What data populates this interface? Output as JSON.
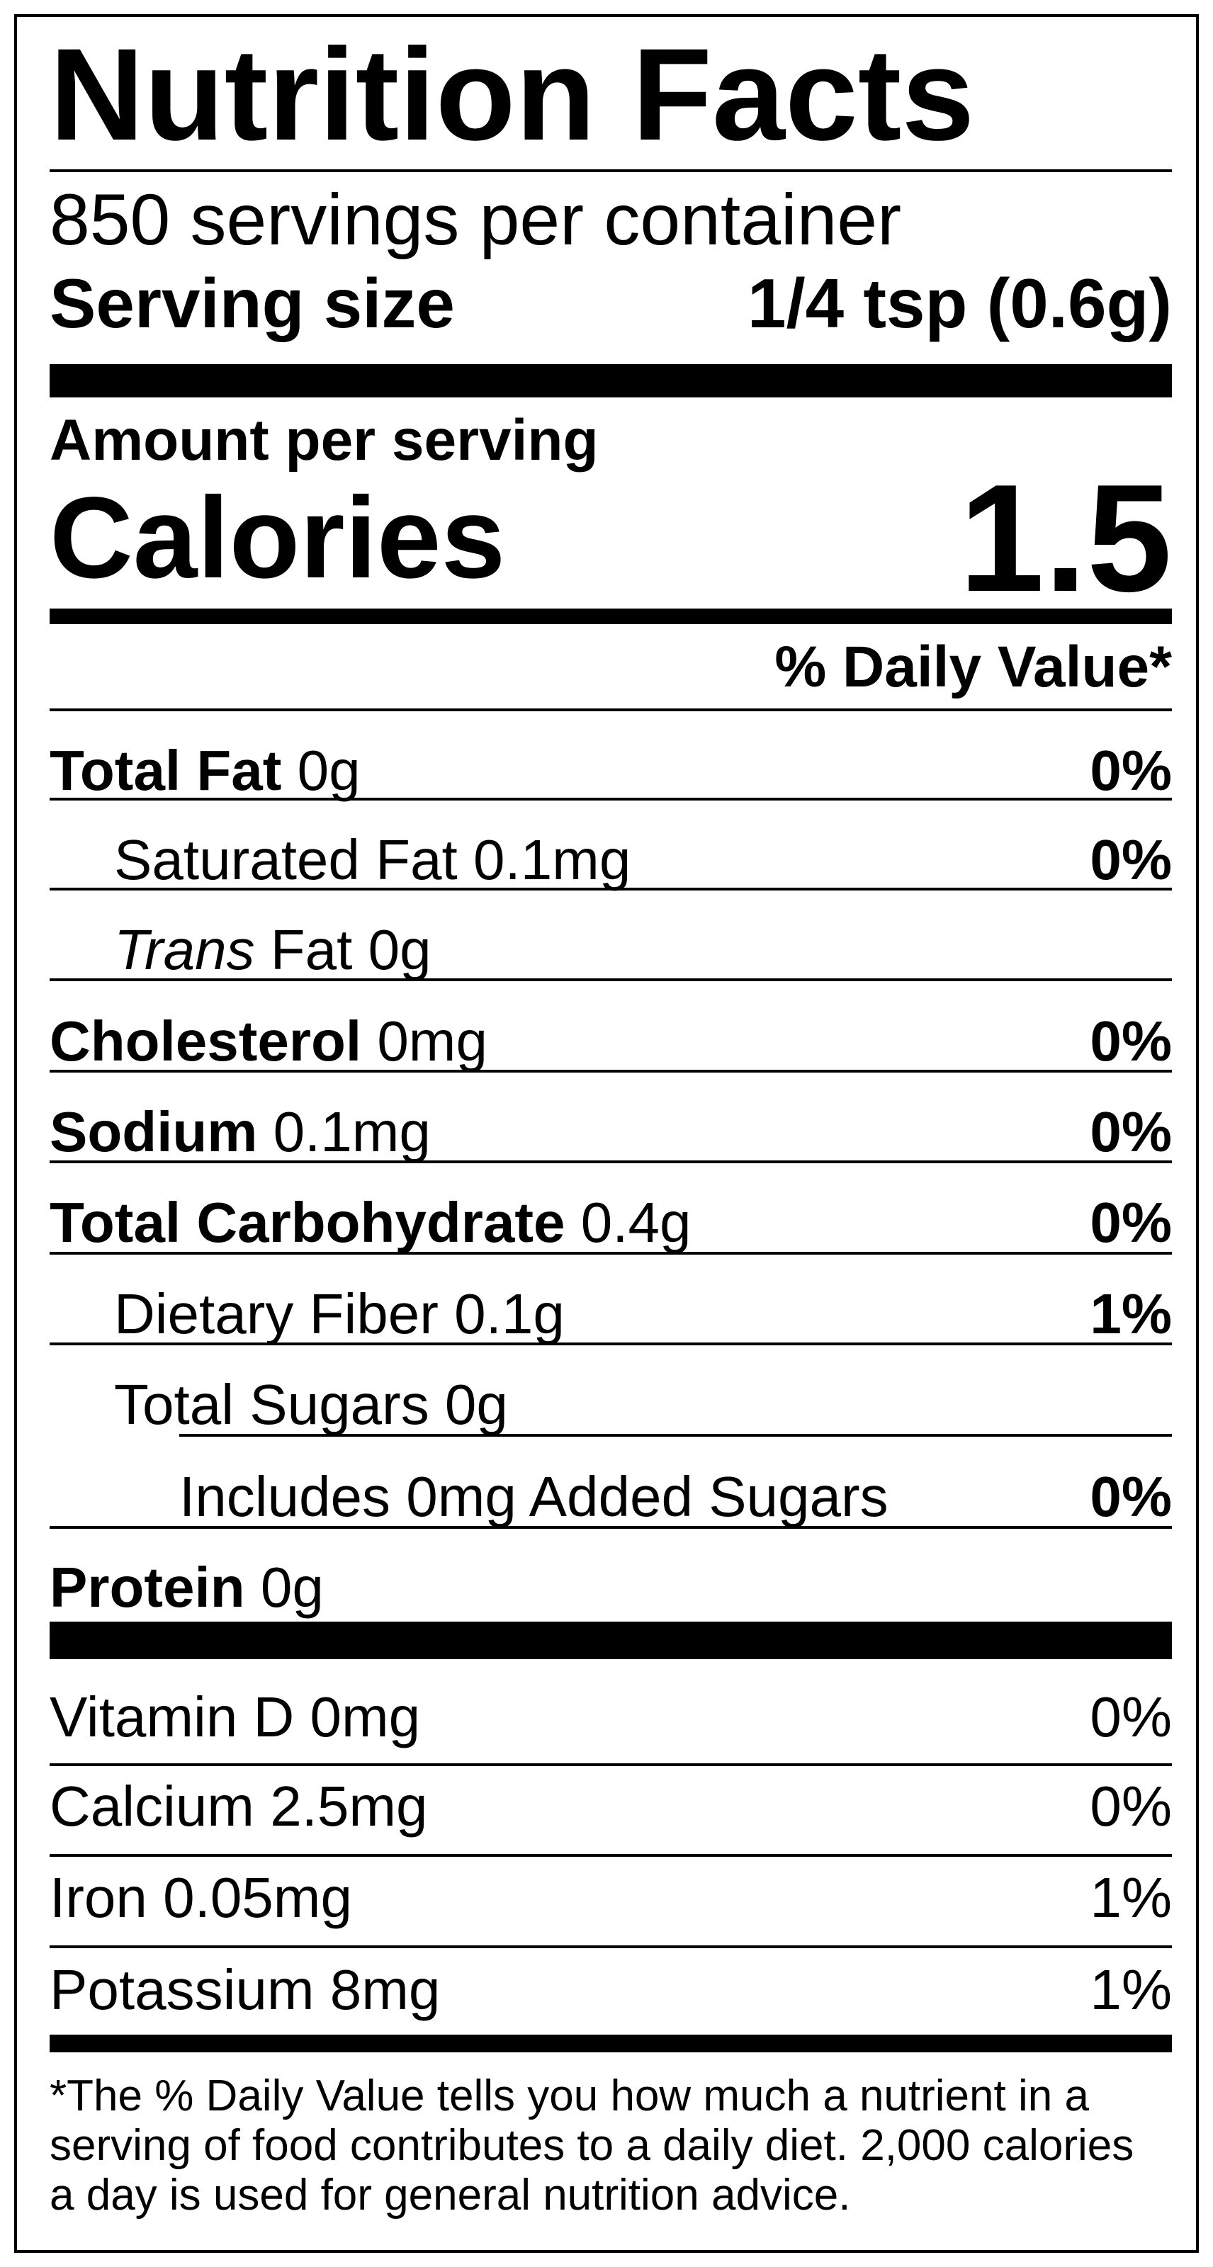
{
  "title": "Nutrition Facts",
  "servings_per_container": "850 servings per container",
  "serving_size": {
    "label": "Serving size",
    "value": "1/4 tsp (0.6g)"
  },
  "amount_per_serving": "Amount per serving",
  "calories": {
    "label": "Calories",
    "value": "1.5"
  },
  "daily_value_header": "% Daily Value*",
  "nutrients": [
    {
      "name": "Total Fat",
      "amount": "0g",
      "daily_value": "0%"
    },
    {
      "name": "Saturated Fat",
      "amount": "0.1mg",
      "daily_value": "0%"
    },
    {
      "name_italic": "Trans",
      "name": "Fat",
      "amount": "0g"
    },
    {
      "name": "Cholesterol",
      "amount": "0mg",
      "daily_value": "0%"
    },
    {
      "name": "Sodium",
      "amount": "0.1mg",
      "daily_value": "0%"
    },
    {
      "name": "Total Carbohydrate",
      "amount": "0.4g",
      "daily_value": "0%"
    },
    {
      "name": "Dietary Fiber",
      "amount": "0.1g",
      "daily_value": "1%"
    },
    {
      "name": "Total Sugars",
      "amount": "0g"
    },
    {
      "prefix": "Includes",
      "amount": "0mg",
      "name": "Added Sugars",
      "daily_value": "0%"
    },
    {
      "name": "Protein",
      "amount": "0g"
    }
  ],
  "vitamins": [
    {
      "name": "Vitamin D",
      "amount": "0mg",
      "daily_value": "0%"
    },
    {
      "name": "Calcium",
      "amount": "2.5mg",
      "daily_value": "0%"
    },
    {
      "name": "Iron",
      "amount": "0.05mg",
      "daily_value": "1%"
    },
    {
      "name": "Potassium",
      "amount": "8mg",
      "daily_value": "1%"
    }
  ],
  "footnote": [
    "*The % Daily Value tells you how much a nutrient in a",
    "serving of food contributes to a daily diet. 2,000 calories",
    "a day is used for general nutrition advice."
  ]
}
